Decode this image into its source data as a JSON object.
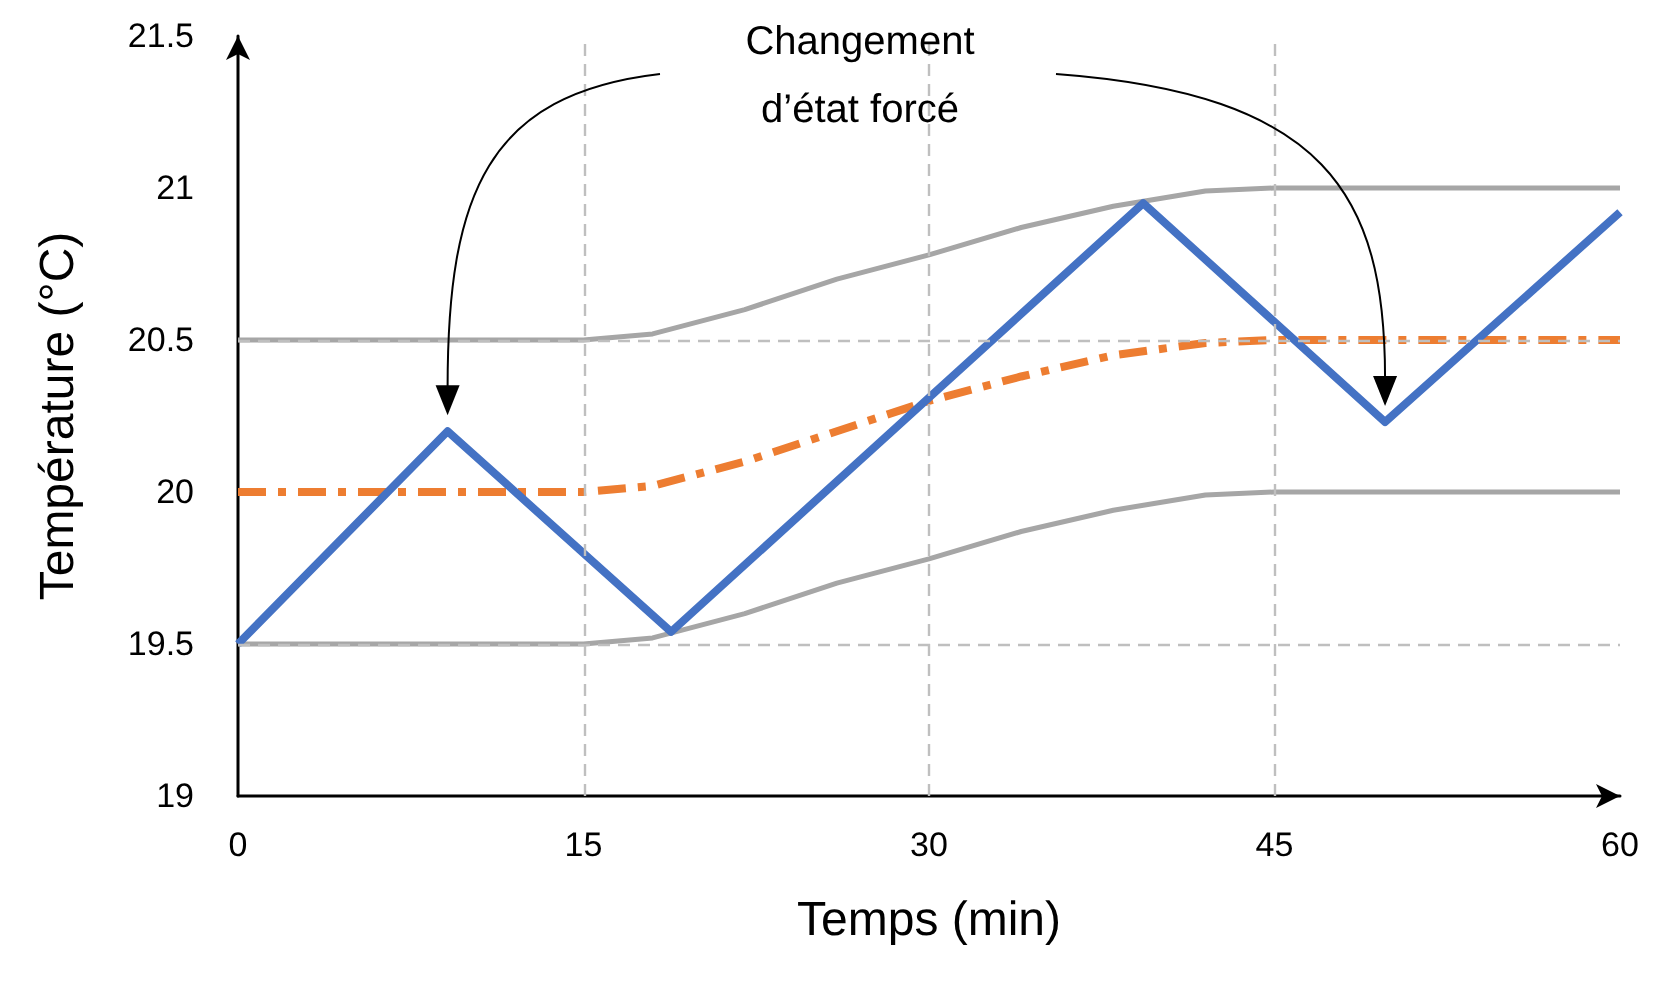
{
  "chart_data": {
    "type": "line",
    "xlabel": "Temps (min)",
    "ylabel": "Température (°C)",
    "annotations": [
      "Changement\nd’état forcé"
    ],
    "xlim": [
      0,
      60
    ],
    "xticks": [
      0,
      15,
      30,
      45,
      60
    ],
    "ylim": [
      19,
      21.5
    ],
    "yticks": [
      19,
      19.5,
      20,
      20.5,
      21,
      21.5
    ],
    "grid": false,
    "marker": "none",
    "ref_lines": [
      {
        "axis": "x",
        "value": 15,
        "color": "#bfbfbf",
        "line_style": "dashed"
      },
      {
        "axis": "x",
        "value": 30,
        "color": "#bfbfbf",
        "line_style": "dashed"
      },
      {
        "axis": "x",
        "value": 45,
        "color": "#bfbfbf",
        "line_style": "dashed"
      },
      {
        "axis": "y",
        "value": 19.5,
        "color": "#bfbfbf",
        "line_style": "dashed"
      },
      {
        "axis": "y",
        "value": 20.5,
        "color": "#bfbfbf",
        "line_style": "dashed"
      }
    ],
    "series": [
      {
        "color": "#a6a6a6",
        "line_style": "solid",
        "x": [
          0,
          15,
          18,
          22,
          26,
          30,
          34,
          38,
          42,
          45,
          60
        ],
        "values": [
          20.5,
          20.5,
          20.52,
          20.6,
          20.7,
          20.78,
          20.87,
          20.94,
          20.99,
          21,
          21
        ]
      },
      {
        "color": "#a6a6a6",
        "line_style": "solid",
        "x": [
          0,
          15,
          18,
          22,
          26,
          30,
          34,
          38,
          42,
          45,
          60
        ],
        "values": [
          19.5,
          19.5,
          19.52,
          19.6,
          19.7,
          19.78,
          19.87,
          19.94,
          19.99,
          20,
          20
        ]
      },
      {
        "color": "#ed7d31",
        "line_style": "dashdot",
        "x": [
          0,
          15,
          18,
          22,
          26,
          30,
          34,
          38,
          42,
          45,
          60
        ],
        "values": [
          20,
          20,
          20.02,
          20.1,
          20.2,
          20.3,
          20.38,
          20.45,
          20.49,
          20.5,
          20.5
        ]
      },
      {
        "color": "#4472c4",
        "line_style": "solid",
        "x": [
          0,
          9.1,
          18.8,
          39.3,
          49.8,
          60
        ],
        "values": [
          19.5,
          20.2,
          19.54,
          20.95,
          20.23,
          20.92
        ]
      }
    ]
  }
}
